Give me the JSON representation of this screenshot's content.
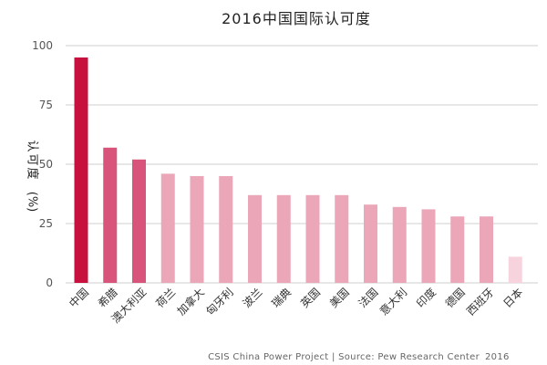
{
  "chart_data": {
    "type": "bar",
    "title": "2016中国国际认可度",
    "ylabel": "认可度（%）",
    "ylabel_chars": [
      "认",
      "可",
      "度"
    ],
    "ylabel_unit": "(%)",
    "xlabel": "",
    "ylim": [
      0,
      100
    ],
    "yticks": [
      0,
      25,
      50,
      75,
      100
    ],
    "grid": true,
    "categories": [
      "中国",
      "希腊",
      "澳大利亚",
      "荷兰",
      "加拿大",
      "匈牙利",
      "波兰",
      "瑞典",
      "英国",
      "美国",
      "法国",
      "意大利",
      "印度",
      "德国",
      "西班牙",
      "日本"
    ],
    "values": [
      95,
      57,
      52,
      46,
      45,
      45,
      37,
      37,
      37,
      37,
      33,
      32,
      31,
      28,
      28,
      11
    ],
    "colors": [
      "#c8103e",
      "#d9547a",
      "#d9547a",
      "#eba6b8",
      "#eba6b8",
      "#eba6b8",
      "#eba6b8",
      "#eba6b8",
      "#eba6b8",
      "#eba6b8",
      "#eba6b8",
      "#eba6b8",
      "#eba6b8",
      "#eba6b8",
      "#eba6b8",
      "#f7d3dd"
    ],
    "source": "CSIS China Power Project | Source: Pew Research Center",
    "year": "2016"
  }
}
